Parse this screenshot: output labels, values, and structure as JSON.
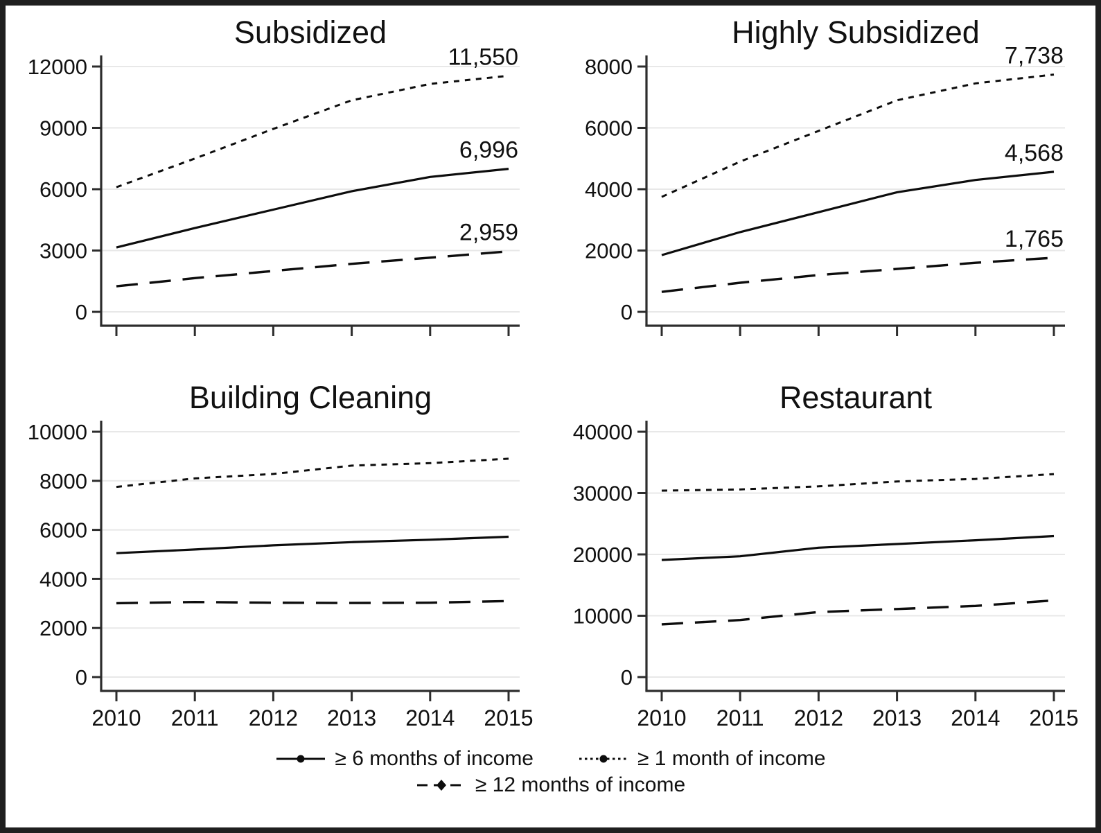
{
  "figure": {
    "background": "#ffffff",
    "border_color": "#1f1f1f",
    "line_color": "#0d0d0d",
    "grid_color": "#e8e8e8",
    "axis_color": "#2d2d2d",
    "text_color": "#111111"
  },
  "x_years": [
    "2010",
    "2011",
    "2012",
    "2013",
    "2014",
    "2015"
  ],
  "legend": {
    "items": [
      {
        "style": "solid",
        "marker": "circle",
        "label": "≥ 6 months of income"
      },
      {
        "style": "dotted",
        "marker": "circle",
        "label": "≥ 1 month of income"
      },
      {
        "style": "longdash",
        "marker": "diamond",
        "label": "≥ 12 months of income"
      }
    ]
  },
  "chart_data": [
    {
      "type": "line",
      "title": "Subsidized",
      "x": [
        2010,
        2011,
        2012,
        2013,
        2014,
        2015
      ],
      "ylim": [
        0,
        12000
      ],
      "yticks": [
        0,
        3000,
        6000,
        9000,
        12000
      ],
      "show_x_labels": false,
      "grid": true,
      "series": [
        {
          "name": "≥ 1 month of income",
          "style": "dotted",
          "values": [
            6100,
            7500,
            8950,
            10350,
            11150,
            11550
          ],
          "end_label": "11,550"
        },
        {
          "name": "≥ 6 months of income",
          "style": "solid",
          "values": [
            3150,
            4100,
            5000,
            5900,
            6600,
            6996
          ],
          "end_label": "6,996"
        },
        {
          "name": "≥ 12 months of income",
          "style": "longdash",
          "values": [
            1250,
            1650,
            2000,
            2350,
            2650,
            2959
          ],
          "end_label": "2,959"
        }
      ]
    },
    {
      "type": "line",
      "title": "Highly Subsidized",
      "x": [
        2010,
        2011,
        2012,
        2013,
        2014,
        2015
      ],
      "ylim": [
        0,
        8000
      ],
      "yticks": [
        0,
        2000,
        4000,
        6000,
        8000
      ],
      "show_x_labels": false,
      "grid": true,
      "series": [
        {
          "name": "≥ 1 month of income",
          "style": "dotted",
          "values": [
            3750,
            4900,
            5900,
            6900,
            7450,
            7738
          ],
          "end_label": "7,738"
        },
        {
          "name": "≥ 6 months of income",
          "style": "solid",
          "values": [
            1850,
            2600,
            3250,
            3900,
            4300,
            4568
          ],
          "end_label": "4,568"
        },
        {
          "name": "≥ 12 months of income",
          "style": "longdash",
          "values": [
            650,
            950,
            1200,
            1400,
            1600,
            1765
          ],
          "end_label": "1,765"
        }
      ]
    },
    {
      "type": "line",
      "title": "Building Cleaning",
      "x": [
        2010,
        2011,
        2012,
        2013,
        2014,
        2015
      ],
      "ylim": [
        0,
        10000
      ],
      "yticks": [
        0,
        2000,
        4000,
        6000,
        8000,
        10000
      ],
      "show_x_labels": true,
      "grid": true,
      "series": [
        {
          "name": "≥ 1 month of income",
          "style": "dotted",
          "values": [
            7750,
            8100,
            8280,
            8620,
            8720,
            8900
          ],
          "end_label": ""
        },
        {
          "name": "≥ 6 months of income",
          "style": "solid",
          "values": [
            5050,
            5200,
            5370,
            5500,
            5600,
            5720
          ],
          "end_label": ""
        },
        {
          "name": "≥ 12 months of income",
          "style": "longdash",
          "values": [
            3010,
            3060,
            3030,
            3020,
            3030,
            3100
          ],
          "end_label": ""
        }
      ]
    },
    {
      "type": "line",
      "title": "Restaurant",
      "x": [
        2010,
        2011,
        2012,
        2013,
        2014,
        2015
      ],
      "ylim": [
        0,
        40000
      ],
      "yticks": [
        0,
        10000,
        20000,
        30000,
        40000
      ],
      "show_x_labels": true,
      "grid": true,
      "series": [
        {
          "name": "≥ 1 month of income",
          "style": "dotted",
          "values": [
            30400,
            30600,
            31100,
            31900,
            32300,
            33100
          ],
          "end_label": ""
        },
        {
          "name": "≥ 6 months of income",
          "style": "solid",
          "values": [
            19100,
            19700,
            21100,
            21700,
            22300,
            23000
          ],
          "end_label": ""
        },
        {
          "name": "≥ 12 months of income",
          "style": "longdash",
          "values": [
            8600,
            9300,
            10600,
            11100,
            11600,
            12500
          ],
          "end_label": ""
        }
      ]
    }
  ]
}
